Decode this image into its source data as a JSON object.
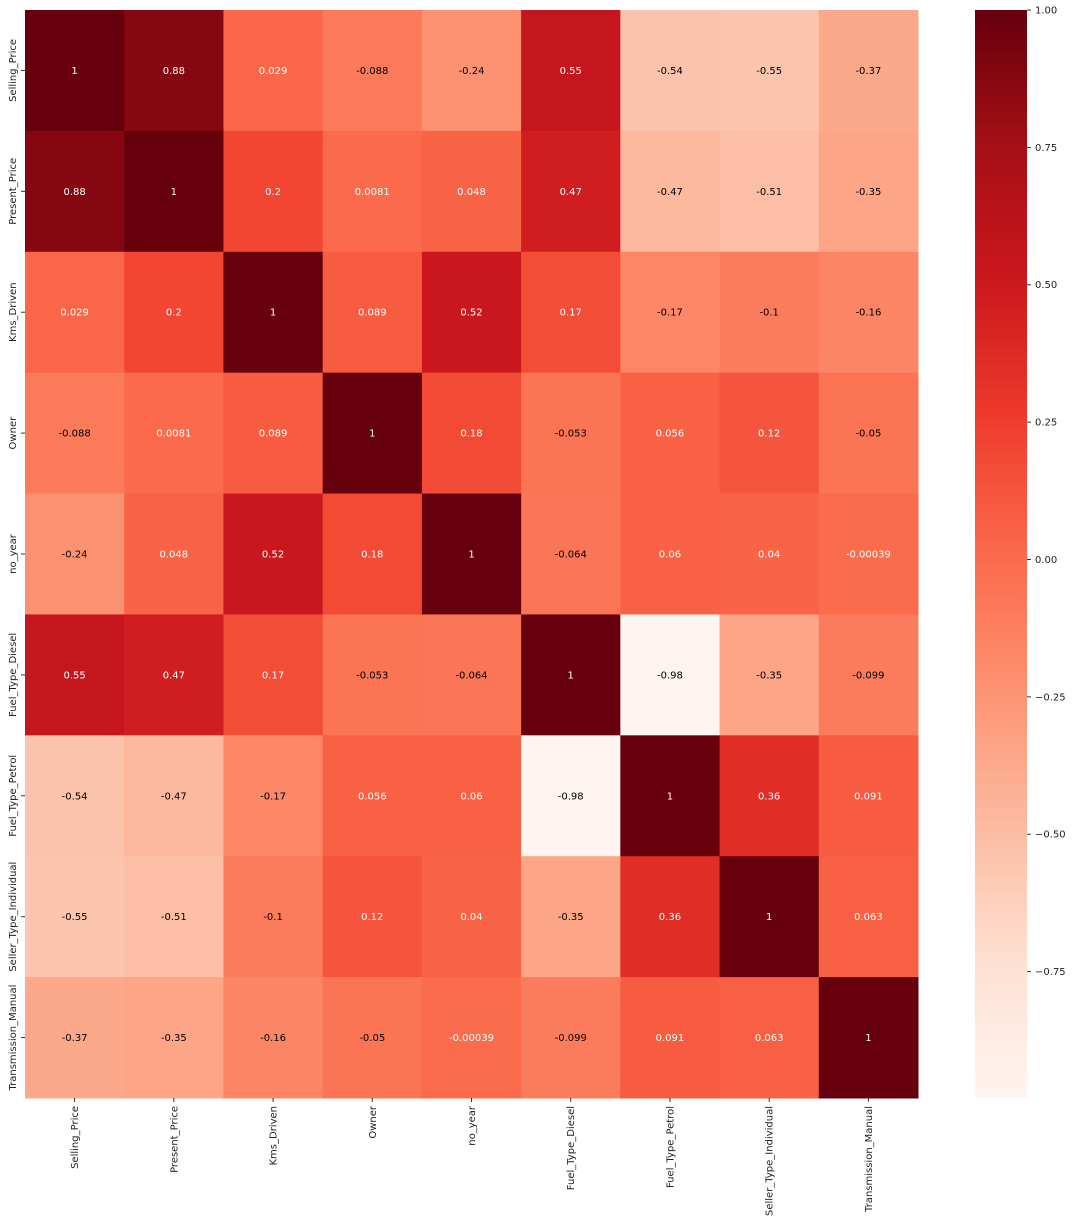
{
  "chart_data": {
    "type": "heatmap",
    "title": "",
    "xlabel": "",
    "ylabel": "",
    "x_labels": [
      "Selling_Price",
      "Present_Price",
      "Kms_Driven",
      "Owner",
      "no_year",
      "Fuel_Type_Diesel",
      "Fuel_Type_Petrol",
      "Seller_Type_Individual",
      "Transmission_Manual"
    ],
    "y_labels": [
      "Selling_Price",
      "Present_Price",
      "Kms_Driven",
      "Owner",
      "no_year",
      "Fuel_Type_Diesel",
      "Fuel_Type_Petrol",
      "Seller_Type_Individual",
      "Transmission_Manual"
    ],
    "values": [
      [
        1,
        0.88,
        0.029,
        -0.088,
        -0.24,
        0.55,
        -0.54,
        -0.55,
        -0.37
      ],
      [
        0.88,
        1,
        0.2,
        0.0081,
        0.048,
        0.47,
        -0.47,
        -0.51,
        -0.35
      ],
      [
        0.029,
        0.2,
        1,
        0.089,
        0.52,
        0.17,
        -0.17,
        -0.1,
        -0.16
      ],
      [
        -0.088,
        0.0081,
        0.089,
        1,
        0.18,
        -0.053,
        0.056,
        0.12,
        -0.05
      ],
      [
        -0.24,
        0.048,
        0.52,
        0.18,
        1,
        -0.064,
        0.06,
        0.04,
        -0.00039
      ],
      [
        0.55,
        0.47,
        0.17,
        -0.053,
        -0.064,
        1,
        -0.98,
        -0.35,
        -0.099
      ],
      [
        -0.54,
        -0.47,
        -0.17,
        0.056,
        0.06,
        -0.98,
        1,
        0.36,
        0.091
      ],
      [
        -0.55,
        -0.51,
        -0.1,
        0.12,
        0.04,
        -0.35,
        0.36,
        1,
        0.063
      ],
      [
        -0.37,
        -0.35,
        -0.16,
        -0.05,
        -0.00039,
        -0.099,
        0.091,
        0.063,
        1
      ]
    ],
    "cell_labels": [
      [
        "1",
        "0.88",
        "0.029",
        "-0.088",
        "-0.24",
        "0.55",
        "-0.54",
        "-0.55",
        "-0.37"
      ],
      [
        "0.88",
        "1",
        "0.2",
        "0.0081",
        "0.048",
        "0.47",
        "-0.47",
        "-0.51",
        "-0.35"
      ],
      [
        "0.029",
        "0.2",
        "1",
        "0.089",
        "0.52",
        "0.17",
        "-0.17",
        "-0.1",
        "-0.16"
      ],
      [
        "-0.088",
        "0.0081",
        "0.089",
        "1",
        "0.18",
        "-0.053",
        "0.056",
        "0.12",
        "-0.05"
      ],
      [
        "-0.24",
        "0.048",
        "0.52",
        "0.18",
        "1",
        "-0.064",
        "0.06",
        "0.04",
        "-0.00039"
      ],
      [
        "0.55",
        "0.47",
        "0.17",
        "-0.053",
        "-0.064",
        "1",
        "-0.98",
        "-0.35",
        "-0.099"
      ],
      [
        "-0.54",
        "-0.47",
        "-0.17",
        "0.056",
        "0.06",
        "-0.98",
        "1",
        "0.36",
        "0.091"
      ],
      [
        "-0.55",
        "-0.51",
        "-0.1",
        "0.12",
        "0.04",
        "-0.35",
        "0.36",
        "1",
        "0.063"
      ],
      [
        "-0.37",
        "-0.35",
        "-0.16",
        "-0.05",
        "-0.00039",
        "-0.099",
        "0.091",
        "0.063",
        "1"
      ]
    ],
    "colormap": "Reds",
    "color_range": [
      -0.98,
      1
    ],
    "colorbar": {
      "ticks": [
        1.0,
        0.75,
        0.5,
        0.25,
        0.0,
        -0.25,
        -0.5,
        -0.75
      ],
      "tick_labels": [
        "1.00",
        "0.75",
        "0.50",
        "0.25",
        "0.00",
        "−0.25",
        "−0.50",
        "−0.75"
      ],
      "placement": "right"
    },
    "annotation_text_colors": {
      "dark_cells": "#ffffff",
      "light_cells": "#000000"
    }
  }
}
